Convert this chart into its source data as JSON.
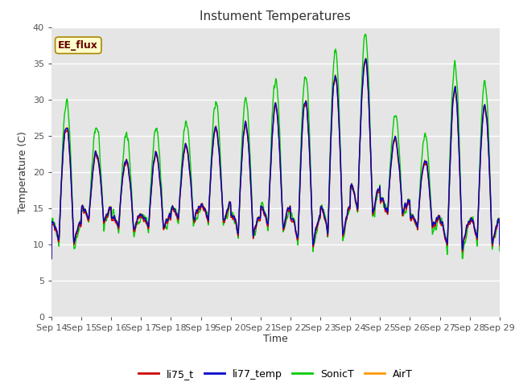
{
  "title": "Instument Temperatures",
  "xlabel": "Time",
  "ylabel": "Temperature (C)",
  "ylim": [
    0,
    40
  ],
  "yticks": [
    0,
    5,
    10,
    15,
    20,
    25,
    30,
    35,
    40
  ],
  "x_labels": [
    "Sep 14",
    "Sep 15",
    "Sep 16",
    "Sep 17",
    "Sep 18",
    "Sep 19",
    "Sep 20",
    "Sep 21",
    "Sep 22",
    "Sep 23",
    "Sep 24",
    "Sep 25",
    "Sep 26",
    "Sep 27",
    "Sep 28",
    "Sep 29"
  ],
  "colors": {
    "li75_t": "#cc0000",
    "li77_temp": "#0000cc",
    "SonicT": "#00cc00",
    "AirT": "#ff9900"
  },
  "annotation_text": "EE_flux",
  "bg_color": "#e5e5e5",
  "fig_color": "#ffffff",
  "linewidth": 1.0,
  "title_fontsize": 11,
  "label_fontsize": 9,
  "tick_fontsize": 8
}
